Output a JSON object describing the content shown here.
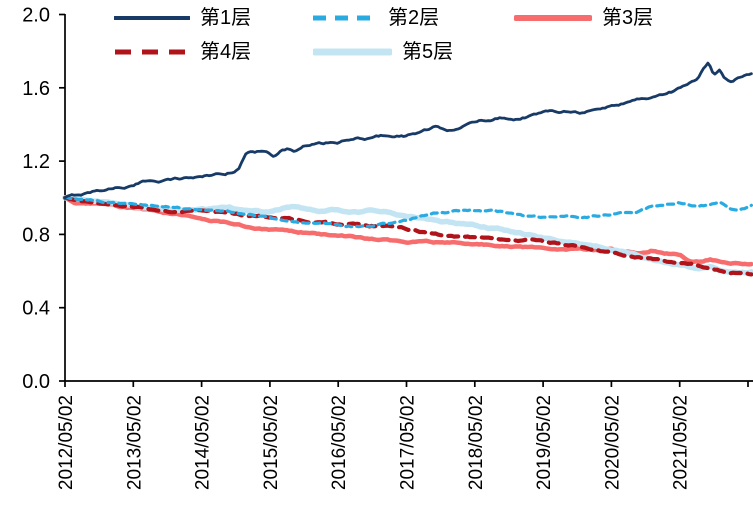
{
  "chart_data": {
    "type": "line",
    "title": "",
    "subtitle": "",
    "grid": false,
    "legend_position": "top",
    "background_color": "#ffffff",
    "axis_color": "#000000",
    "x_axis": {
      "label": "",
      "tick_labels": [
        "2012/05/02",
        "2013/05/02",
        "2014/05/02",
        "2015/05/02",
        "2016/05/02",
        "2017/05/02",
        "2018/05/02",
        "2019/05/02",
        "2020/05/02",
        "2021/05/02"
      ],
      "tick_years_from_start": [
        0,
        1,
        2,
        3,
        4,
        5,
        6,
        7,
        8,
        9
      ],
      "unlabeled_tick_years": [
        10
      ],
      "labels_rotated_degrees": 90
    },
    "y_axis": {
      "label": "",
      "tick_labels": [
        "0.0",
        "0.4",
        "0.8",
        "1.2",
        "1.6",
        "2.0"
      ],
      "tick_values": [
        0.0,
        0.4,
        0.8,
        1.2,
        1.6,
        2.0
      ],
      "range": [
        0.0,
        2.0
      ]
    },
    "x_range_years": [
      0,
      10.05
    ],
    "series": [
      {
        "name": "第1层",
        "color": "#173A66",
        "line_style": "solid",
        "thickness": 2.8,
        "points": [
          [
            0,
            1.0
          ],
          [
            0.2,
            1.015
          ],
          [
            0.5,
            1.04
          ],
          [
            0.8,
            1.06
          ],
          [
            1.0,
            1.065
          ],
          [
            1.2,
            1.09
          ],
          [
            1.5,
            1.1
          ],
          [
            1.8,
            1.11
          ],
          [
            2.0,
            1.115
          ],
          [
            2.2,
            1.13
          ],
          [
            2.35,
            1.125
          ],
          [
            2.5,
            1.15
          ],
          [
            2.55,
            1.17
          ],
          [
            2.65,
            1.25
          ],
          [
            2.8,
            1.25
          ],
          [
            2.95,
            1.26
          ],
          [
            3.05,
            1.24
          ],
          [
            3.15,
            1.26
          ],
          [
            3.25,
            1.27
          ],
          [
            3.35,
            1.25
          ],
          [
            3.5,
            1.28
          ],
          [
            3.7,
            1.29
          ],
          [
            4.0,
            1.3
          ],
          [
            4.3,
            1.32
          ],
          [
            4.5,
            1.325
          ],
          [
            4.7,
            1.34
          ],
          [
            5.0,
            1.34
          ],
          [
            5.2,
            1.36
          ],
          [
            5.4,
            1.38
          ],
          [
            5.6,
            1.37
          ],
          [
            5.9,
            1.4
          ],
          [
            6.1,
            1.42
          ],
          [
            6.4,
            1.44
          ],
          [
            6.6,
            1.435
          ],
          [
            6.9,
            1.46
          ],
          [
            7.1,
            1.47
          ],
          [
            7.4,
            1.48
          ],
          [
            7.6,
            1.47
          ],
          [
            7.9,
            1.49
          ],
          [
            8.1,
            1.51
          ],
          [
            8.4,
            1.54
          ],
          [
            8.6,
            1.55
          ],
          [
            8.9,
            1.58
          ],
          [
            9.1,
            1.62
          ],
          [
            9.25,
            1.64
          ],
          [
            9.35,
            1.7
          ],
          [
            9.42,
            1.74
          ],
          [
            9.5,
            1.67
          ],
          [
            9.58,
            1.7
          ],
          [
            9.65,
            1.66
          ],
          [
            9.75,
            1.64
          ],
          [
            9.85,
            1.66
          ],
          [
            10.05,
            1.68
          ]
        ]
      },
      {
        "name": "第2层",
        "color": "#29ABE2",
        "line_style": "dashed",
        "thickness": 3.2,
        "points": [
          [
            0,
            1.0
          ],
          [
            0.3,
            0.985
          ],
          [
            0.6,
            0.975
          ],
          [
            0.9,
            0.965
          ],
          [
            1.2,
            0.965
          ],
          [
            1.5,
            0.955
          ],
          [
            1.8,
            0.945
          ],
          [
            2.1,
            0.93
          ],
          [
            2.4,
            0.925
          ],
          [
            2.7,
            0.91
          ],
          [
            3.0,
            0.895
          ],
          [
            3.3,
            0.88
          ],
          [
            3.6,
            0.87
          ],
          [
            3.9,
            0.855
          ],
          [
            4.2,
            0.845
          ],
          [
            4.5,
            0.84
          ],
          [
            4.7,
            0.855
          ],
          [
            5.0,
            0.875
          ],
          [
            5.2,
            0.9
          ],
          [
            5.5,
            0.925
          ],
          [
            5.8,
            0.93
          ],
          [
            6.1,
            0.93
          ],
          [
            6.4,
            0.92
          ],
          [
            6.7,
            0.9
          ],
          [
            7.0,
            0.895
          ],
          [
            7.2,
            0.905
          ],
          [
            7.5,
            0.895
          ],
          [
            7.8,
            0.9
          ],
          [
            8.1,
            0.915
          ],
          [
            8.35,
            0.92
          ],
          [
            8.6,
            0.955
          ],
          [
            8.8,
            0.965
          ],
          [
            9.0,
            0.97
          ],
          [
            9.2,
            0.96
          ],
          [
            9.4,
            0.965
          ],
          [
            9.6,
            0.97
          ],
          [
            9.75,
            0.945
          ],
          [
            9.9,
            0.945
          ],
          [
            10.05,
            0.96
          ]
        ]
      },
      {
        "name": "第3层",
        "color": "#F76C6C",
        "line_style": "solid",
        "thickness": 4.5,
        "points": [
          [
            0,
            1.0
          ],
          [
            0.15,
            0.97
          ],
          [
            0.4,
            0.965
          ],
          [
            0.7,
            0.955
          ],
          [
            1.0,
            0.94
          ],
          [
            1.3,
            0.925
          ],
          [
            1.6,
            0.91
          ],
          [
            1.9,
            0.895
          ],
          [
            2.2,
            0.875
          ],
          [
            2.5,
            0.855
          ],
          [
            2.8,
            0.835
          ],
          [
            3.0,
            0.825
          ],
          [
            3.3,
            0.815
          ],
          [
            3.6,
            0.81
          ],
          [
            3.9,
            0.795
          ],
          [
            4.2,
            0.785
          ],
          [
            4.5,
            0.775
          ],
          [
            4.8,
            0.765
          ],
          [
            5.1,
            0.76
          ],
          [
            5.4,
            0.755
          ],
          [
            5.7,
            0.75
          ],
          [
            6.0,
            0.745
          ],
          [
            6.3,
            0.74
          ],
          [
            6.6,
            0.735
          ],
          [
            6.9,
            0.725
          ],
          [
            7.2,
            0.72
          ],
          [
            7.5,
            0.72
          ],
          [
            7.8,
            0.715
          ],
          [
            8.0,
            0.715
          ],
          [
            8.2,
            0.7
          ],
          [
            8.45,
            0.7
          ],
          [
            8.6,
            0.715
          ],
          [
            8.8,
            0.7
          ],
          [
            9.0,
            0.695
          ],
          [
            9.15,
            0.66
          ],
          [
            9.3,
            0.66
          ],
          [
            9.45,
            0.67
          ],
          [
            9.6,
            0.65
          ],
          [
            9.8,
            0.645
          ],
          [
            10.05,
            0.64
          ]
        ]
      },
      {
        "name": "第4层",
        "color": "#B0131A",
        "line_style": "dashed",
        "thickness": 4.2,
        "points": [
          [
            0,
            1.0
          ],
          [
            0.2,
            0.975
          ],
          [
            0.5,
            0.965
          ],
          [
            0.8,
            0.955
          ],
          [
            1.1,
            0.945
          ],
          [
            1.4,
            0.93
          ],
          [
            1.7,
            0.92
          ],
          [
            1.9,
            0.93
          ],
          [
            2.1,
            0.935
          ],
          [
            2.3,
            0.92
          ],
          [
            2.6,
            0.905
          ],
          [
            2.9,
            0.9
          ],
          [
            3.1,
            0.895
          ],
          [
            3.4,
            0.88
          ],
          [
            3.7,
            0.87
          ],
          [
            4.0,
            0.86
          ],
          [
            4.3,
            0.855
          ],
          [
            4.6,
            0.845
          ],
          [
            4.9,
            0.835
          ],
          [
            5.2,
            0.815
          ],
          [
            5.5,
            0.795
          ],
          [
            5.8,
            0.785
          ],
          [
            6.1,
            0.78
          ],
          [
            6.4,
            0.775
          ],
          [
            6.7,
            0.77
          ],
          [
            7.0,
            0.76
          ],
          [
            7.3,
            0.745
          ],
          [
            7.6,
            0.73
          ],
          [
            7.9,
            0.71
          ],
          [
            8.2,
            0.69
          ],
          [
            8.5,
            0.67
          ],
          [
            8.8,
            0.655
          ],
          [
            9.0,
            0.645
          ],
          [
            9.2,
            0.635
          ],
          [
            9.4,
            0.615
          ],
          [
            9.6,
            0.6
          ],
          [
            9.8,
            0.595
          ],
          [
            10.05,
            0.585
          ]
        ]
      },
      {
        "name": "第5层",
        "color": "#C3E5F3",
        "line_style": "solid",
        "thickness": 5.5,
        "points": [
          [
            0,
            1.0
          ],
          [
            0.3,
            0.98
          ],
          [
            0.6,
            0.97
          ],
          [
            0.9,
            0.96
          ],
          [
            1.2,
            0.945
          ],
          [
            1.5,
            0.935
          ],
          [
            1.8,
            0.93
          ],
          [
            2.1,
            0.935
          ],
          [
            2.4,
            0.94
          ],
          [
            2.7,
            0.925
          ],
          [
            3.0,
            0.92
          ],
          [
            3.2,
            0.945
          ],
          [
            3.4,
            0.95
          ],
          [
            3.6,
            0.93
          ],
          [
            3.8,
            0.92
          ],
          [
            4.0,
            0.93
          ],
          [
            4.2,
            0.92
          ],
          [
            4.5,
            0.93
          ],
          [
            4.8,
            0.915
          ],
          [
            5.0,
            0.905
          ],
          [
            5.2,
            0.89
          ],
          [
            5.5,
            0.87
          ],
          [
            5.8,
            0.855
          ],
          [
            6.1,
            0.84
          ],
          [
            6.4,
            0.825
          ],
          [
            6.7,
            0.8
          ],
          [
            7.0,
            0.78
          ],
          [
            7.3,
            0.765
          ],
          [
            7.6,
            0.745
          ],
          [
            7.9,
            0.73
          ],
          [
            8.1,
            0.715
          ],
          [
            8.3,
            0.7
          ],
          [
            8.5,
            0.675
          ],
          [
            8.7,
            0.655
          ],
          [
            8.9,
            0.64
          ],
          [
            9.1,
            0.625
          ],
          [
            9.3,
            0.615
          ],
          [
            9.45,
            0.625
          ],
          [
            9.6,
            0.605
          ],
          [
            9.8,
            0.595
          ],
          [
            10.05,
            0.6
          ]
        ]
      }
    ]
  }
}
